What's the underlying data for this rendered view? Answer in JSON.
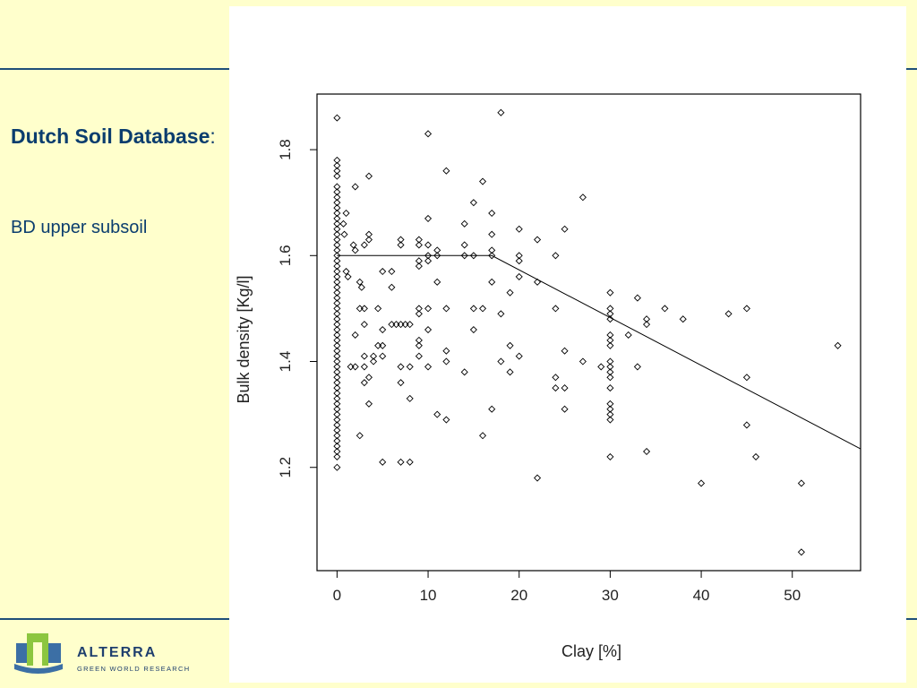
{
  "slide": {
    "title_bold": "Dutch Soil Database",
    "title_suffix": ":",
    "subtitle": "BD upper subsoil"
  },
  "logo": {
    "name": "ALTERRA",
    "tagline": "GREEN WORLD RESEARCH"
  },
  "colors": {
    "background": "#ffffcc",
    "accent": "#1f4e79",
    "title": "#0b3d6e",
    "logo_green": "#8cc63f",
    "logo_blue": "#3c6fa5"
  },
  "chart_data": {
    "type": "scatter",
    "xlabel": "Clay [%]",
    "ylabel": "Bulk density [Kg/l]",
    "xlim": [
      -2.2,
      57.5
    ],
    "ylim": [
      1.005,
      1.905
    ],
    "xticks": [
      0,
      10,
      20,
      30,
      40,
      50
    ],
    "yticks": [
      1.2,
      1.4,
      1.6,
      1.8
    ],
    "grid": false,
    "fit_line": {
      "x": [
        0,
        17,
        57.5
      ],
      "y": [
        1.6,
        1.6,
        1.235
      ]
    },
    "points": [
      [
        0,
        1.86
      ],
      [
        0,
        1.78
      ],
      [
        0,
        1.77
      ],
      [
        0,
        1.76
      ],
      [
        0,
        1.75
      ],
      [
        0,
        1.73
      ],
      [
        0,
        1.72
      ],
      [
        0,
        1.71
      ],
      [
        0,
        1.7
      ],
      [
        0,
        1.69
      ],
      [
        0,
        1.68
      ],
      [
        0,
        1.67
      ],
      [
        0,
        1.66
      ],
      [
        0,
        1.65
      ],
      [
        0,
        1.64
      ],
      [
        0,
        1.63
      ],
      [
        0,
        1.62
      ],
      [
        0,
        1.61
      ],
      [
        0,
        1.6
      ],
      [
        0,
        1.59
      ],
      [
        0,
        1.58
      ],
      [
        0,
        1.57
      ],
      [
        0,
        1.56
      ],
      [
        0,
        1.55
      ],
      [
        0,
        1.54
      ],
      [
        0,
        1.53
      ],
      [
        0,
        1.52
      ],
      [
        0,
        1.51
      ],
      [
        0,
        1.5
      ],
      [
        0,
        1.49
      ],
      [
        0,
        1.48
      ],
      [
        0,
        1.47
      ],
      [
        0,
        1.46
      ],
      [
        0,
        1.45
      ],
      [
        0,
        1.44
      ],
      [
        0,
        1.43
      ],
      [
        0,
        1.42
      ],
      [
        0,
        1.41
      ],
      [
        0,
        1.4
      ],
      [
        0,
        1.39
      ],
      [
        0,
        1.38
      ],
      [
        0,
        1.37
      ],
      [
        0,
        1.36
      ],
      [
        0,
        1.35
      ],
      [
        0,
        1.34
      ],
      [
        0,
        1.33
      ],
      [
        0,
        1.32
      ],
      [
        0,
        1.31
      ],
      [
        0,
        1.3
      ],
      [
        0,
        1.29
      ],
      [
        0,
        1.28
      ],
      [
        0,
        1.27
      ],
      [
        0,
        1.26
      ],
      [
        0,
        1.25
      ],
      [
        0,
        1.24
      ],
      [
        0,
        1.23
      ],
      [
        0,
        1.22
      ],
      [
        0,
        1.2
      ],
      [
        1,
        1.68
      ],
      [
        0.7,
        1.66
      ],
      [
        0.8,
        1.64
      ],
      [
        1,
        1.57
      ],
      [
        1.2,
        1.56
      ],
      [
        2,
        1.73
      ],
      [
        1.8,
        1.62
      ],
      [
        2,
        1.61
      ],
      [
        2.5,
        1.55
      ],
      [
        2.7,
        1.54
      ],
      [
        1.5,
        1.39
      ],
      [
        2,
        1.39
      ],
      [
        2,
        1.45
      ],
      [
        2.5,
        1.5
      ],
      [
        2.5,
        1.26
      ],
      [
        3,
        1.47
      ],
      [
        3,
        1.41
      ],
      [
        3,
        1.39
      ],
      [
        3,
        1.36
      ],
      [
        3,
        1.5
      ],
      [
        3.5,
        1.64
      ],
      [
        3.5,
        1.63
      ],
      [
        3,
        1.62
      ],
      [
        3.5,
        1.75
      ],
      [
        3.5,
        1.37
      ],
      [
        3.5,
        1.32
      ],
      [
        4,
        1.41
      ],
      [
        4,
        1.4
      ],
      [
        4.5,
        1.43
      ],
      [
        4.5,
        1.5
      ],
      [
        5,
        1.57
      ],
      [
        5,
        1.43
      ],
      [
        5,
        1.41
      ],
      [
        5,
        1.46
      ],
      [
        5,
        1.21
      ],
      [
        6,
        1.57
      ],
      [
        6,
        1.54
      ],
      [
        6,
        1.47
      ],
      [
        6.5,
        1.47
      ],
      [
        7,
        1.63
      ],
      [
        7,
        1.62
      ],
      [
        7,
        1.47
      ],
      [
        7,
        1.39
      ],
      [
        7.5,
        1.47
      ],
      [
        7,
        1.36
      ],
      [
        7,
        1.21
      ],
      [
        8,
        1.39
      ],
      [
        8,
        1.33
      ],
      [
        8,
        1.47
      ],
      [
        8,
        1.21
      ],
      [
        9,
        1.63
      ],
      [
        9,
        1.62
      ],
      [
        9,
        1.59
      ],
      [
        9,
        1.58
      ],
      [
        9,
        1.5
      ],
      [
        9,
        1.49
      ],
      [
        9,
        1.44
      ],
      [
        9,
        1.43
      ],
      [
        9,
        1.41
      ],
      [
        10,
        1.83
      ],
      [
        10,
        1.67
      ],
      [
        10,
        1.62
      ],
      [
        10,
        1.6
      ],
      [
        10,
        1.59
      ],
      [
        10,
        1.5
      ],
      [
        10,
        1.46
      ],
      [
        10,
        1.39
      ],
      [
        11,
        1.61
      ],
      [
        11,
        1.6
      ],
      [
        11,
        1.55
      ],
      [
        11,
        1.3
      ],
      [
        12,
        1.76
      ],
      [
        12,
        1.5
      ],
      [
        12,
        1.42
      ],
      [
        12,
        1.4
      ],
      [
        12,
        1.29
      ],
      [
        14,
        1.66
      ],
      [
        14,
        1.62
      ],
      [
        14,
        1.6
      ],
      [
        14,
        1.38
      ],
      [
        15,
        1.7
      ],
      [
        15,
        1.6
      ],
      [
        15,
        1.5
      ],
      [
        15,
        1.46
      ],
      [
        16,
        1.74
      ],
      [
        16,
        1.5
      ],
      [
        16,
        1.26
      ],
      [
        17,
        1.68
      ],
      [
        17,
        1.64
      ],
      [
        17,
        1.61
      ],
      [
        17,
        1.6
      ],
      [
        17,
        1.55
      ],
      [
        17,
        1.31
      ],
      [
        18,
        1.87
      ],
      [
        18,
        1.49
      ],
      [
        18,
        1.4
      ],
      [
        19,
        1.53
      ],
      [
        19,
        1.43
      ],
      [
        19,
        1.38
      ],
      [
        20,
        1.65
      ],
      [
        20,
        1.6
      ],
      [
        20,
        1.59
      ],
      [
        20,
        1.56
      ],
      [
        20,
        1.41
      ],
      [
        22,
        1.63
      ],
      [
        22,
        1.55
      ],
      [
        22,
        1.18
      ],
      [
        24,
        1.6
      ],
      [
        24,
        1.5
      ],
      [
        24,
        1.37
      ],
      [
        24,
        1.35
      ],
      [
        25,
        1.65
      ],
      [
        25,
        1.42
      ],
      [
        25,
        1.35
      ],
      [
        25,
        1.31
      ],
      [
        27,
        1.71
      ],
      [
        27,
        1.4
      ],
      [
        29,
        1.39
      ],
      [
        30,
        1.53
      ],
      [
        30,
        1.5
      ],
      [
        30,
        1.49
      ],
      [
        30,
        1.48
      ],
      [
        30,
        1.45
      ],
      [
        30,
        1.44
      ],
      [
        30,
        1.43
      ],
      [
        30,
        1.4
      ],
      [
        30,
        1.39
      ],
      [
        30,
        1.38
      ],
      [
        30,
        1.37
      ],
      [
        30,
        1.35
      ],
      [
        30,
        1.32
      ],
      [
        30,
        1.31
      ],
      [
        30,
        1.3
      ],
      [
        30,
        1.29
      ],
      [
        30,
        1.22
      ],
      [
        32,
        1.45
      ],
      [
        33,
        1.52
      ],
      [
        33,
        1.39
      ],
      [
        34,
        1.48
      ],
      [
        34,
        1.47
      ],
      [
        34,
        1.23
      ],
      [
        36,
        1.5
      ],
      [
        38,
        1.48
      ],
      [
        40,
        1.17
      ],
      [
        43,
        1.49
      ],
      [
        45,
        1.5
      ],
      [
        45,
        1.37
      ],
      [
        45,
        1.28
      ],
      [
        46,
        1.22
      ],
      [
        51,
        1.17
      ],
      [
        51,
        1.04
      ],
      [
        55,
        1.43
      ]
    ]
  }
}
